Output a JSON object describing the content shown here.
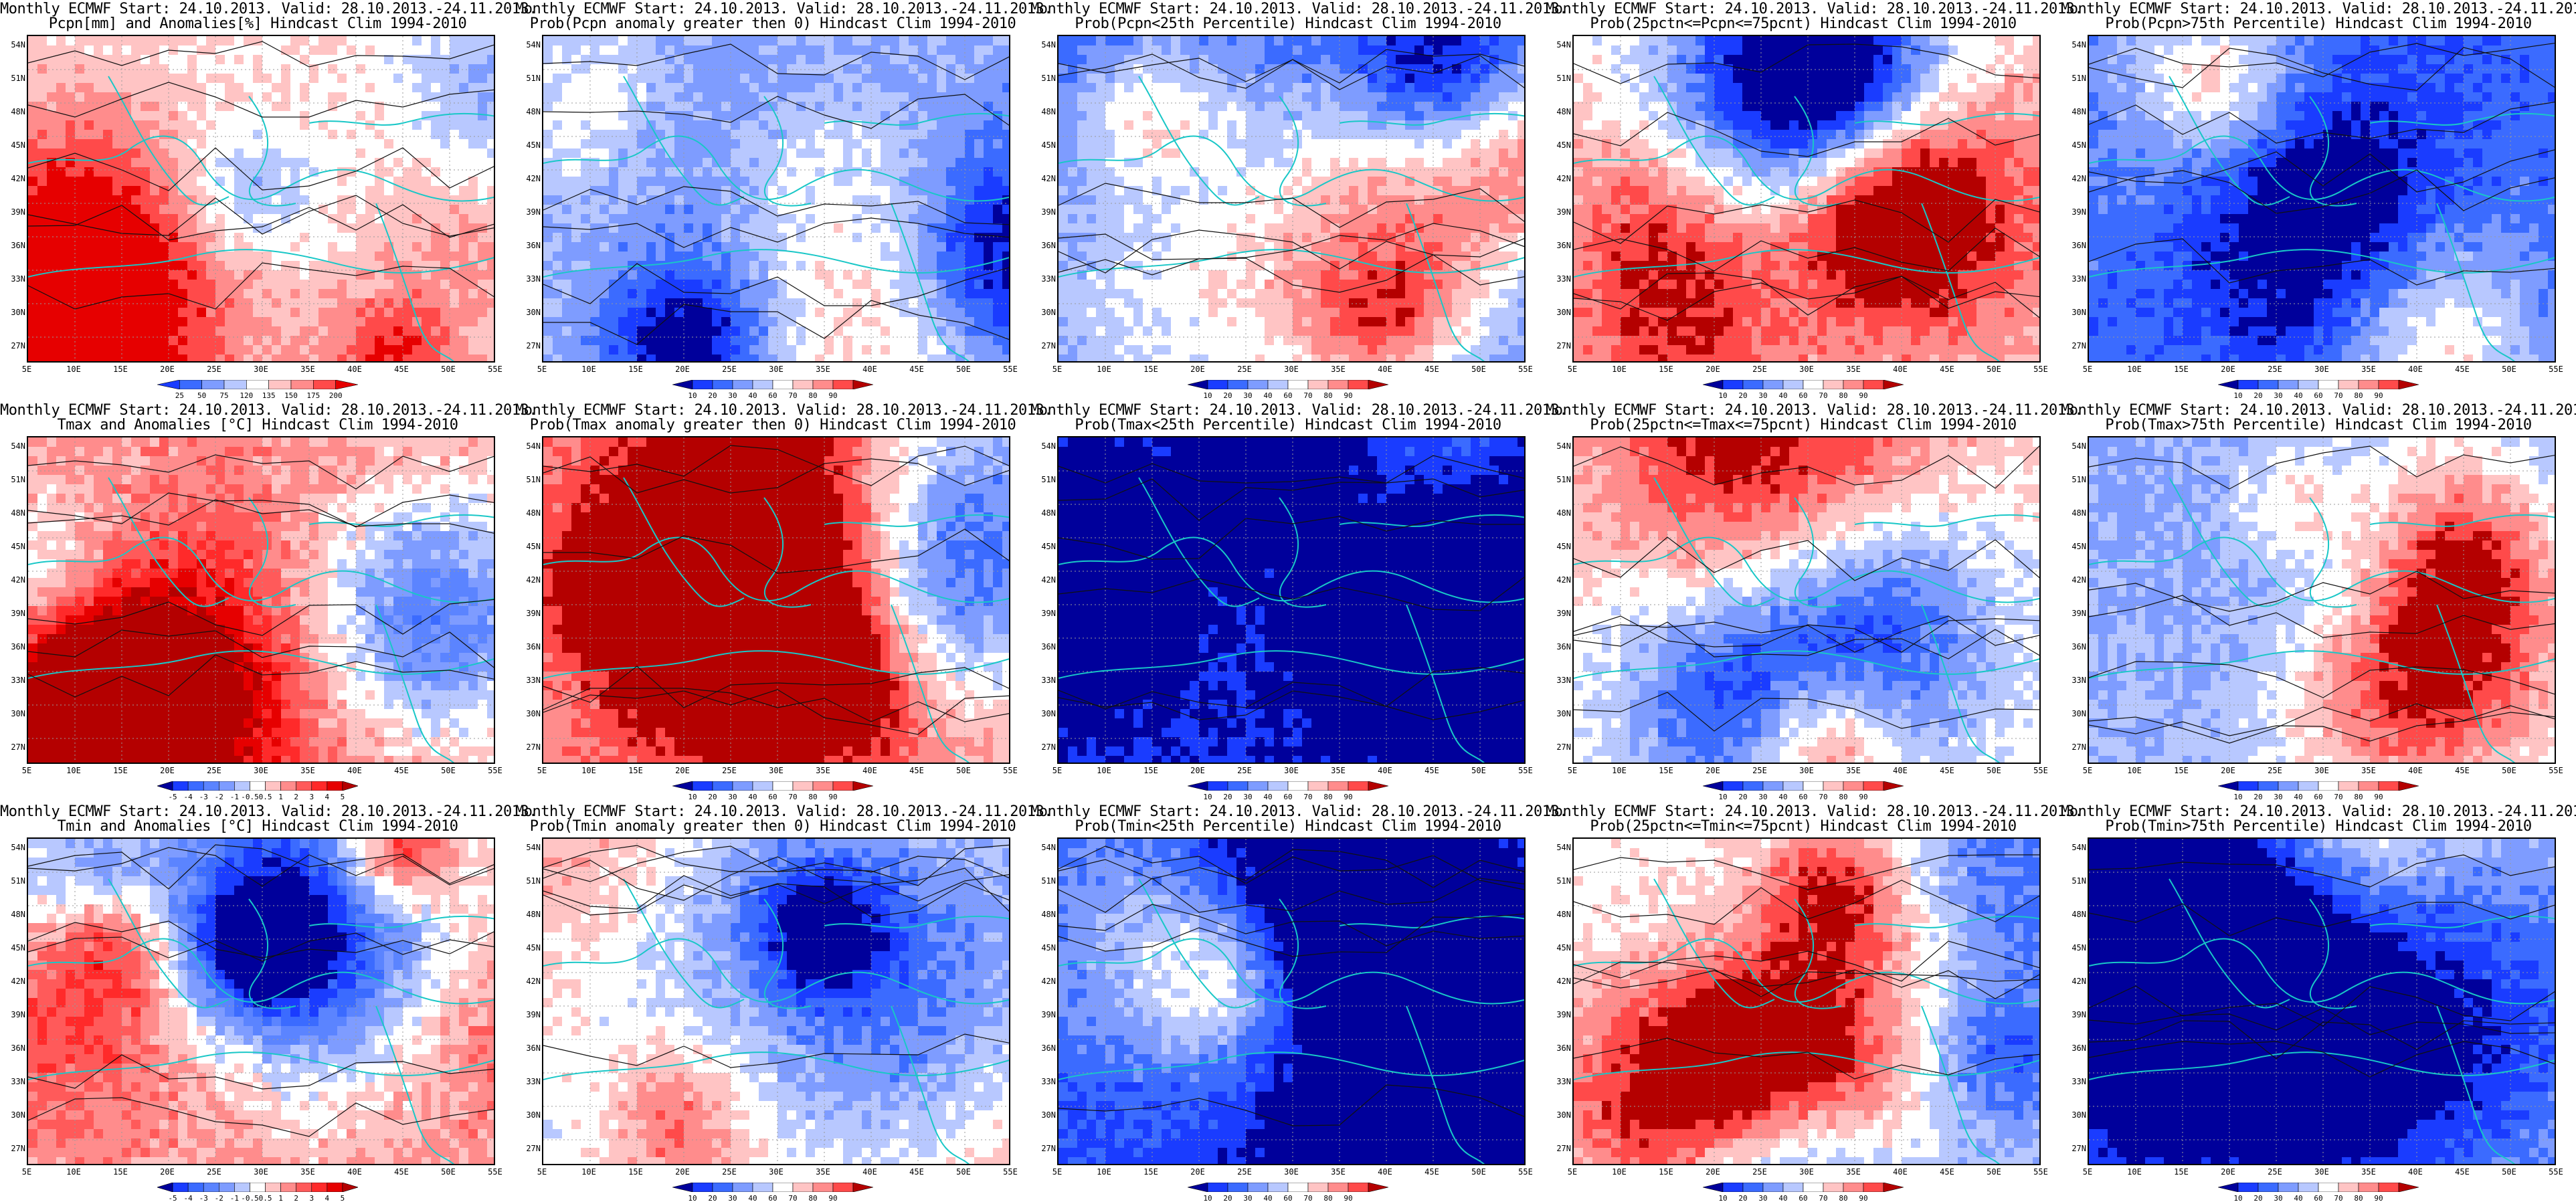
{
  "header_line": "Monthly ECMWF Start: 24.10.2013. Valid: 28.10.2013.-24.11.2013.",
  "lat_labels": [
    "54N",
    "51N",
    "48N",
    "45N",
    "42N",
    "39N",
    "36N",
    "33N",
    "30N",
    "27N"
  ],
  "lon_labels": [
    "5E",
    "10E",
    "15E",
    "20E",
    "25E",
    "30E",
    "35E",
    "40E",
    "45E",
    "50E",
    "55E"
  ],
  "colorbars": {
    "precip": {
      "labels": [
        "25",
        "50",
        "75",
        "120",
        "135",
        "150",
        "175",
        "200"
      ],
      "colors": [
        "#1a3cff",
        "#3b6bff",
        "#7e9cff",
        "#b8c8ff",
        "#ffffff",
        "#ffc4c4",
        "#ff8c8c",
        "#ff4a4a",
        "#e60000"
      ]
    },
    "prob": {
      "labels": [
        "10",
        "20",
        "30",
        "40",
        "60",
        "70",
        "80",
        "90"
      ],
      "colors": [
        "#00009b",
        "#1a3cff",
        "#3b6bff",
        "#7e9cff",
        "#b8c8ff",
        "#ffffff",
        "#ffc4c4",
        "#ff8c8c",
        "#ff4a4a",
        "#b40000"
      ]
    },
    "temp": {
      "labels": [
        "-5",
        "-4",
        "-3",
        "-2",
        "-1",
        "-0.5",
        "0.5",
        "1",
        "2",
        "3",
        "4",
        "5"
      ],
      "colors": [
        "#00009b",
        "#1a3cff",
        "#3b6bff",
        "#5b84ff",
        "#7e9cff",
        "#b8c8ff",
        "#ffffff",
        "#ffc4c4",
        "#ff8c8c",
        "#ff5a5a",
        "#ff2a2a",
        "#e60000",
        "#b40000"
      ]
    }
  },
  "panels": [
    {
      "title2": "Pcpn[mm] and Anomalies[%] Hindcast Clim 1994-2010",
      "cbar": "precip",
      "tone": 0.1
    },
    {
      "title2": "Prob(Pcpn anomaly greater then 0) Hindcast Clim 1994-2010",
      "cbar": "prob",
      "tone": -0.2
    },
    {
      "title2": "Prob(Pcpn<25th Percentile) Hindcast Clim 1994-2010",
      "cbar": "prob",
      "tone": -0.7
    },
    {
      "title2": "Prob(25pctn<=Pcpn<=75pcnt) Hindcast Clim 1994-2010",
      "cbar": "prob",
      "tone": 0.15
    },
    {
      "title2": "Prob(Pcpn>75th Percentile) Hindcast Clim 1994-2010",
      "cbar": "prob",
      "tone": -0.55
    },
    {
      "title2": "Tmax and Anomalies [°C] Hindcast Clim 1994-2010",
      "cbar": "temp",
      "tone": 0.3
    },
    {
      "title2": "Prob(Tmax anomaly greater then 0) Hindcast Clim 1994-2010",
      "cbar": "prob",
      "tone": 0.55
    },
    {
      "title2": "Prob(Tmax<25th Percentile) Hindcast Clim 1994-2010",
      "cbar": "prob",
      "tone": -0.8
    },
    {
      "title2": "Prob(25pctn<=Tmax<=75pcnt) Hindcast Clim 1994-2010",
      "cbar": "prob",
      "tone": 0.2
    },
    {
      "title2": "Prob(Tmax>75th Percentile) Hindcast Clim 1994-2010",
      "cbar": "prob",
      "tone": -0.3
    },
    {
      "title2": "Tmin and Anomalies [°C] Hindcast Clim 1994-2010",
      "cbar": "temp",
      "tone": 0.25
    },
    {
      "title2": "Prob(Tmin anomaly greater then 0) Hindcast Clim 1994-2010",
      "cbar": "prob",
      "tone": 0.5
    },
    {
      "title2": "Prob(Tmin<25th Percentile) Hindcast Clim 1994-2010",
      "cbar": "prob",
      "tone": -0.75
    },
    {
      "title2": "Prob(25pctn<=Tmin<=75pcnt) Hindcast Clim 1994-2010",
      "cbar": "prob",
      "tone": 0.1
    },
    {
      "title2": "Prob(Tmin>75th Percentile) Hindcast Clim 1994-2010",
      "cbar": "prob",
      "tone": -0.25
    }
  ]
}
